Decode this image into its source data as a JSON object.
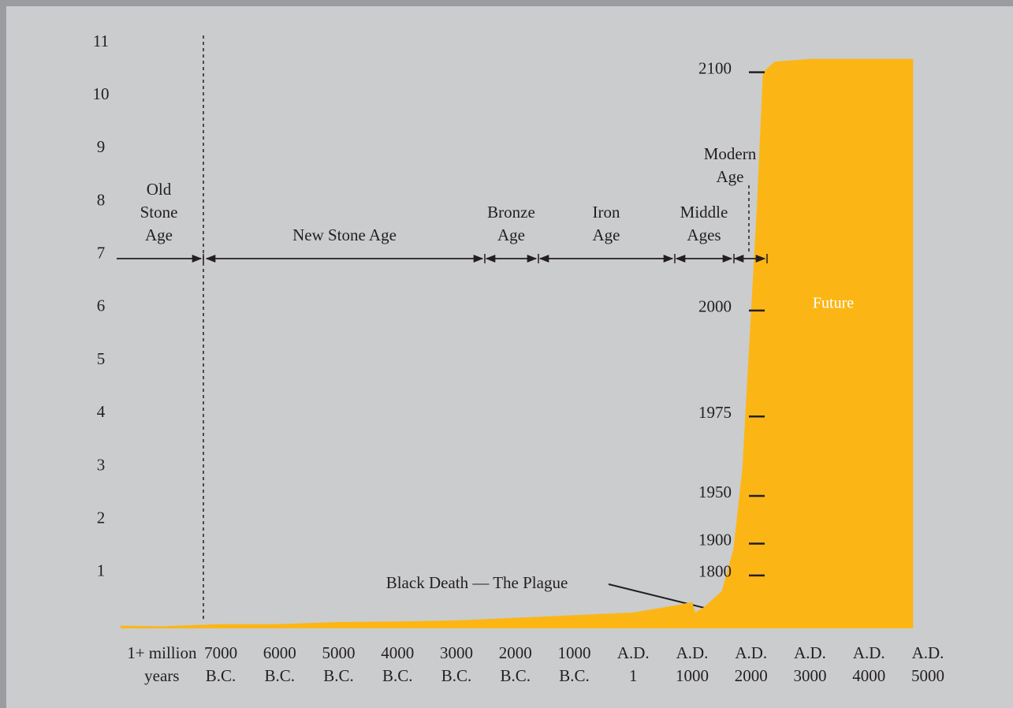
{
  "chart_data": {
    "type": "area",
    "color": "#fbb616",
    "categories": [
      [
        "1+ million",
        "years"
      ],
      [
        "7000",
        "B.C."
      ],
      [
        "6000",
        "B.C."
      ],
      [
        "5000",
        "B.C."
      ],
      [
        "4000",
        "B.C."
      ],
      [
        "3000",
        "B.C."
      ],
      [
        "2000",
        "B.C."
      ],
      [
        "1000",
        "B.C."
      ],
      [
        "A.D.",
        "1"
      ],
      [
        "A.D.",
        "1000"
      ],
      [
        "A.D.",
        "2000"
      ],
      [
        "A.D.",
        "3000"
      ],
      [
        "A.D.",
        "4000"
      ],
      [
        "A.D.",
        "5000"
      ]
    ],
    "x": [
      -0.7,
      0,
      1,
      2,
      3,
      4,
      5,
      6,
      7,
      8,
      8.8,
      9.0,
      9.05,
      9.2,
      9.5,
      9.7,
      9.85,
      10.0,
      10.1,
      10.2,
      10.4,
      11,
      12,
      12.75
    ],
    "values": [
      0.05,
      0.04,
      0.08,
      0.08,
      0.12,
      0.13,
      0.15,
      0.2,
      0.25,
      0.3,
      0.45,
      0.5,
      0.3,
      0.4,
      0.7,
      1.5,
      3,
      6,
      8,
      10.5,
      10.7,
      10.75,
      10.75,
      10.75
    ],
    "xlim": [
      -0.7,
      13
    ],
    "ylim": [
      0,
      11
    ],
    "yticks": [
      1,
      2,
      3,
      4,
      5,
      6,
      7,
      8,
      9,
      10,
      11
    ],
    "milestones": [
      {
        "label": "2100",
        "value": 10.5
      },
      {
        "label": "2000",
        "value": 6
      },
      {
        "label": "1975",
        "value": 4
      },
      {
        "label": "1950",
        "value": 2.5
      },
      {
        "label": "1900",
        "value": 1.6
      },
      {
        "label": "1800",
        "value": 1.0
      }
    ],
    "eras": [
      [
        "Old",
        "Stone",
        "Age"
      ],
      [
        "New Stone Age"
      ],
      [
        "Bronze",
        "Age"
      ],
      [
        "Iron",
        "Age"
      ],
      [
        "Middle",
        "Ages"
      ],
      [
        "Modern",
        "Age"
      ]
    ],
    "annotations": [
      "Black Death — The Plague",
      "Future"
    ]
  }
}
